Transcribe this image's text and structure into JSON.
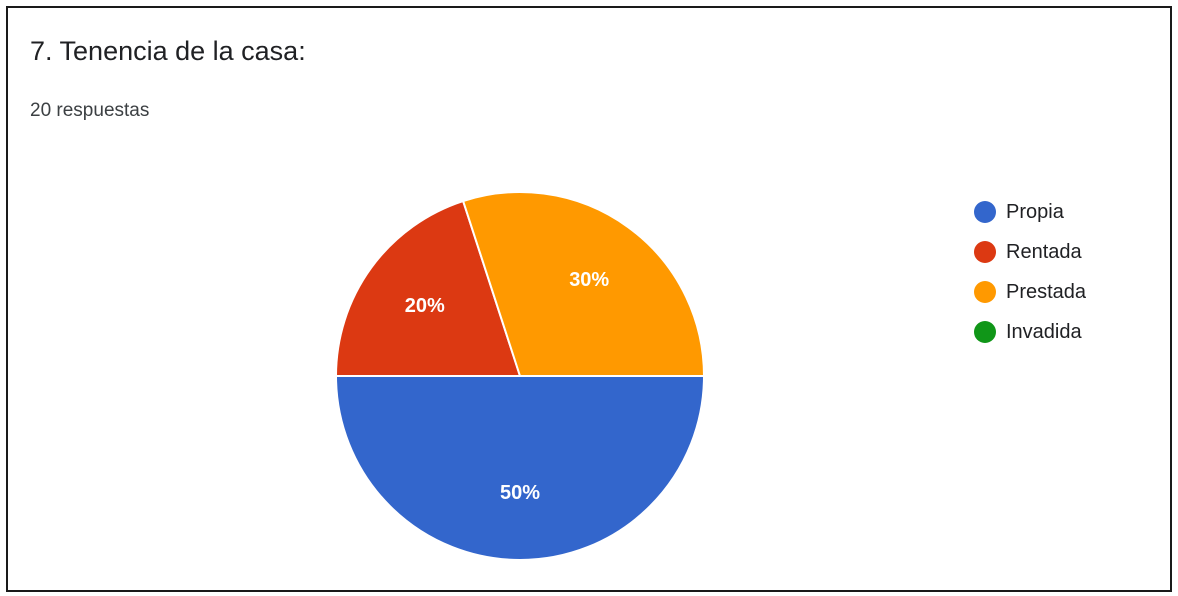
{
  "header": {
    "title": "7. Tenencia de la casa:",
    "responses": "20 respuestas"
  },
  "chart_data": {
    "type": "pie",
    "categories": [
      "Propia",
      "Rentada",
      "Prestada",
      "Invadida"
    ],
    "values": [
      50,
      20,
      30,
      0
    ],
    "labels": [
      "50%",
      "20%",
      "30%",
      ""
    ],
    "colors": [
      "#3366cc",
      "#dc3912",
      "#ff9900",
      "#109618"
    ],
    "legend": "right"
  }
}
